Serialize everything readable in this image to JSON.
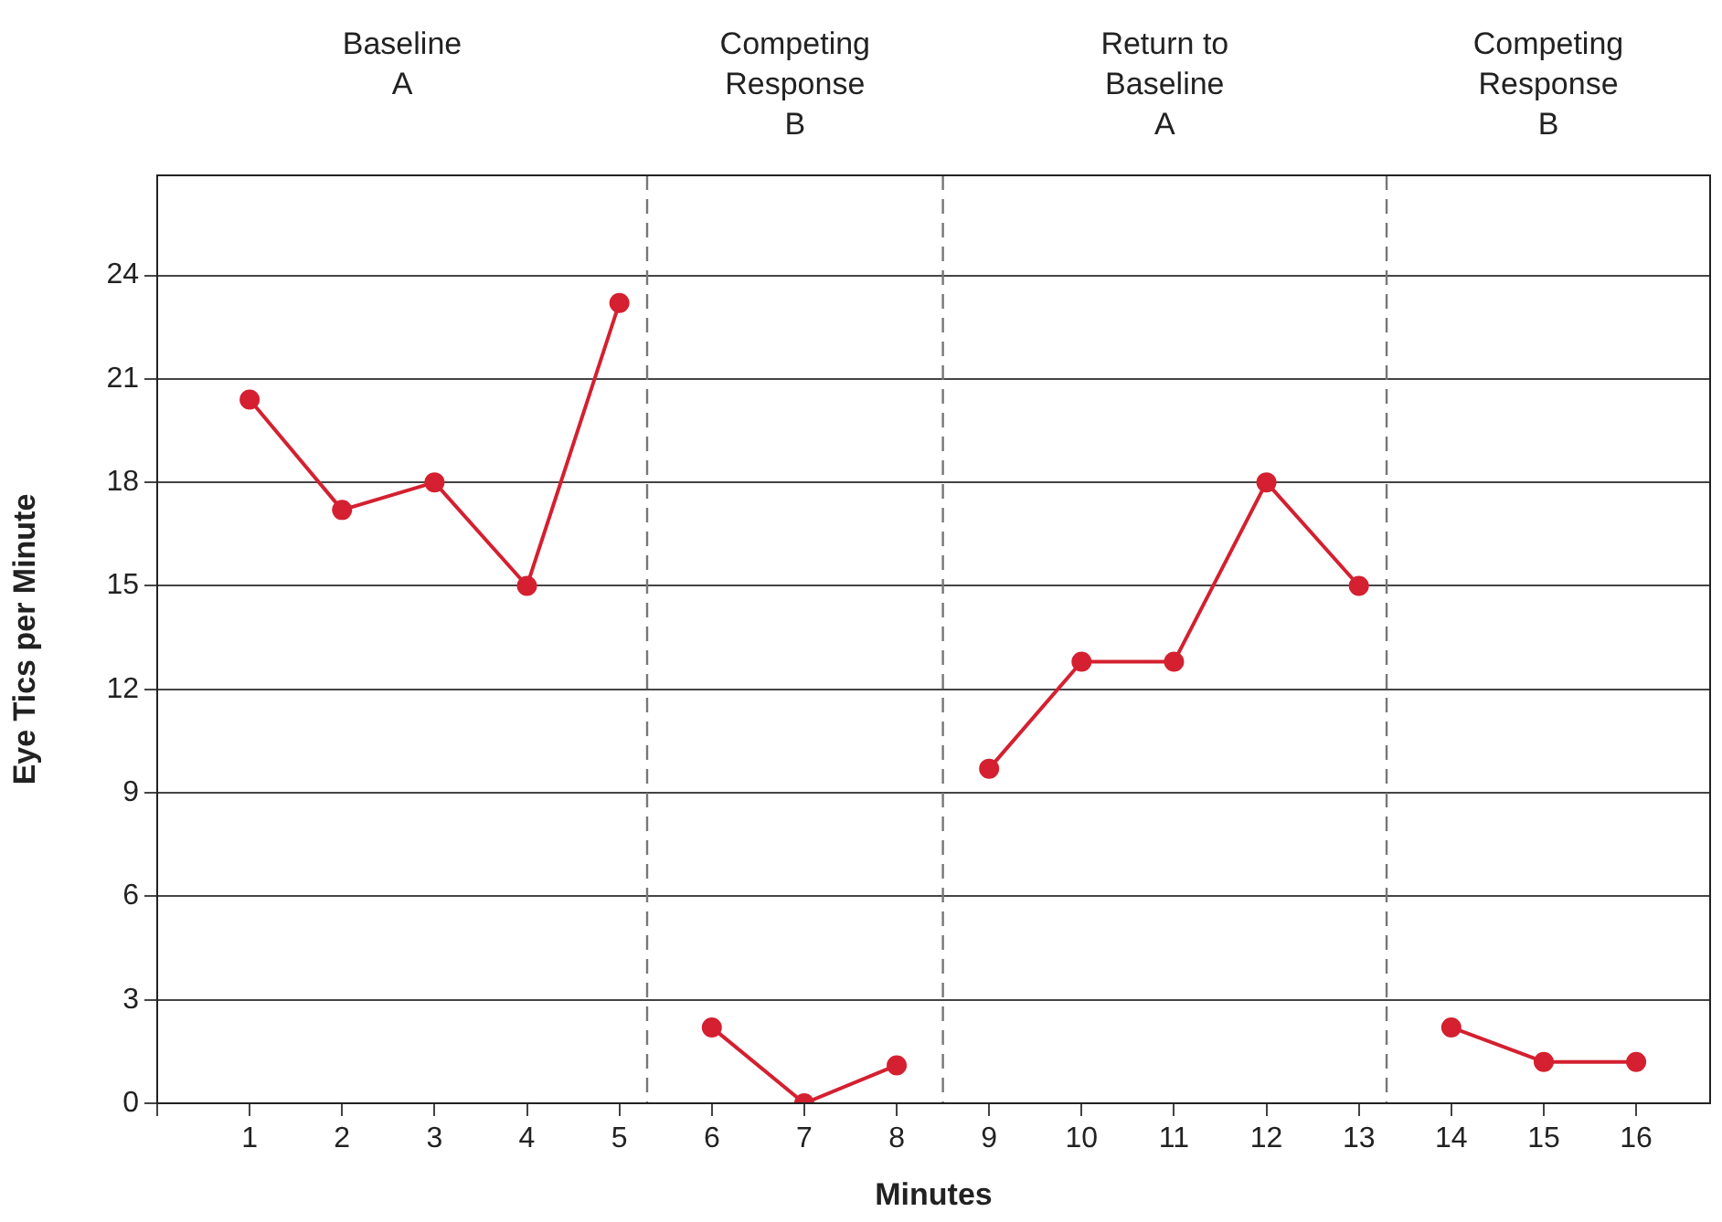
{
  "chart_data": {
    "type": "line",
    "xlabel": "Minutes",
    "ylabel": "Eye Tics per Minute",
    "annotations": [
      "Baseline\nA",
      "Competing\nResponse\nB",
      "Return to\nBaseline\nA",
      "Competing\nResponse\nB"
    ],
    "series": [
      {
        "color": "#d42030",
        "x": [
          1,
          2,
          3,
          4,
          5
        ],
        "values": [
          20.4,
          17.2,
          18,
          15,
          23.2
        ]
      },
      {
        "color": "#d42030",
        "x": [
          6,
          7,
          8
        ],
        "values": [
          2.2,
          0,
          1.1
        ]
      },
      {
        "color": "#d42030",
        "x": [
          9,
          10,
          11,
          12,
          13
        ],
        "values": [
          9.7,
          12.8,
          12.8,
          18,
          15
        ]
      },
      {
        "color": "#d42030",
        "x": [
          14,
          15,
          16
        ],
        "values": [
          2.2,
          1.2,
          1.2
        ]
      }
    ],
    "xlim": [
      0,
      16.8
    ],
    "xticks": [
      {
        "value": 0,
        "label": null
      },
      1,
      2,
      3,
      4,
      5,
      6,
      7,
      8,
      9,
      10,
      11,
      12,
      13,
      14,
      15,
      16
    ],
    "ylim": [
      0,
      26.9
    ],
    "yticks": [
      0,
      3,
      6,
      9,
      12,
      15,
      18,
      21,
      24
    ],
    "ref_lines": [
      {
        "axis": "x",
        "value": 5.3,
        "color": "#777777",
        "line_style": "dashed"
      },
      {
        "axis": "x",
        "value": 8.5,
        "color": "#777777",
        "line_style": "dashed"
      },
      {
        "axis": "x",
        "value": 13.3,
        "color": "#777777",
        "line_style": "dashed"
      }
    ],
    "grid": "y",
    "legend": false,
    "marker": "circle",
    "line_style": "solid"
  }
}
